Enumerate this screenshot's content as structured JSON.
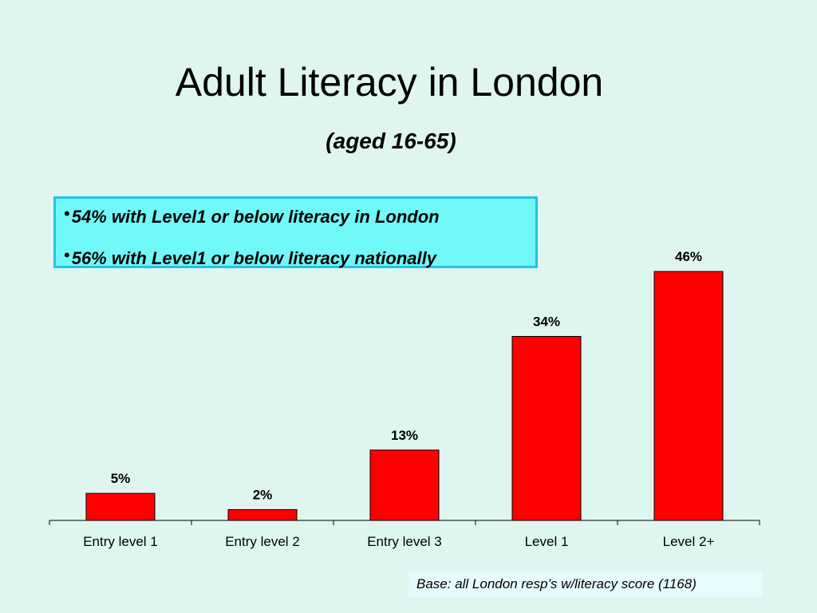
{
  "chart_data": {
    "type": "bar",
    "title": "Adult Literacy in London",
    "subtitle": "(aged 16-65)",
    "annotations": [
      "54% with Level1 or below literacy in London",
      "56% with Level1 or below literacy nationally"
    ],
    "note": "Base: all London resp’s w/literacy score (1168)",
    "categories": [
      "Entry level 1",
      "Entry level 2",
      "Entry level 3",
      "Level 1",
      "Level 2+"
    ],
    "values": [
      5,
      2,
      13,
      34,
      46
    ],
    "value_labels": [
      "5%",
      "2%",
      "13%",
      "34%",
      "46%"
    ],
    "color": "#ff0000"
  }
}
